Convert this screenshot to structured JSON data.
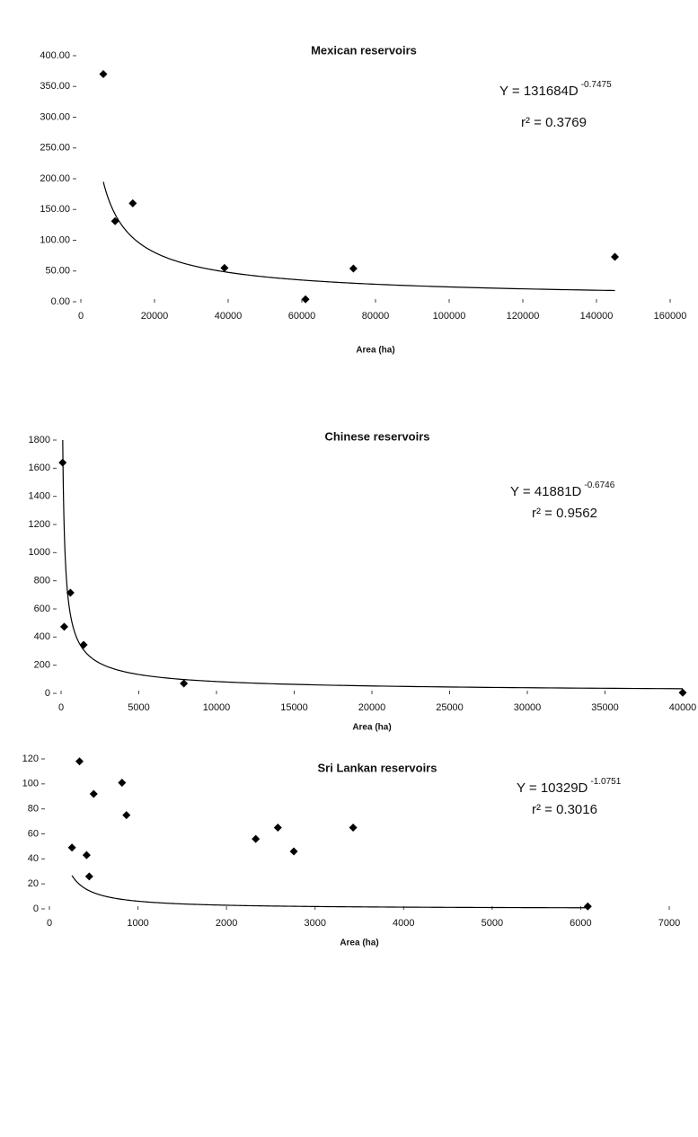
{
  "chart_data": [
    {
      "type": "scatter",
      "title": "Mexican reservoirs",
      "x_label": "Area (ha)",
      "color": "#000000",
      "x": [
        6100,
        9300,
        14100,
        39000,
        61000,
        74000,
        145000
      ],
      "values": [
        370,
        131,
        160,
        55,
        4,
        54,
        73
      ],
      "xlim": [
        0,
        160000
      ],
      "ylim": [
        0,
        400
      ],
      "xticks": [
        0,
        20000,
        40000,
        60000,
        80000,
        100000,
        120000,
        140000,
        160000
      ],
      "yticks": [
        {
          "value": 0,
          "label": "0.00"
        },
        {
          "value": 50,
          "label": "50.00"
        },
        {
          "value": 100,
          "label": "100.00"
        },
        {
          "value": 150,
          "label": "150.00"
        },
        {
          "value": 200,
          "label": "200.00"
        },
        {
          "value": 250,
          "label": "250.00"
        },
        {
          "value": 300,
          "label": "300.00"
        },
        {
          "value": 350,
          "label": "350.00"
        },
        {
          "value": 400,
          "label": "400.00"
        }
      ],
      "trendline": {
        "coefficient": 131684,
        "exponent": -0.7475,
        "label": "Y = 131684D",
        "exponent_label": "-0.7475",
        "r2_label": "r² = 0.3769"
      }
    },
    {
      "type": "scatter",
      "title": "Chinese reservoirs",
      "x_label": "Area (ha)",
      "color": "#000000",
      "x": [
        100,
        200,
        600,
        1450,
        7900,
        40000
      ],
      "values": [
        1640,
        473,
        715,
        345,
        70,
        5
      ],
      "xlim": [
        0,
        40000
      ],
      "ylim": [
        0,
        1800
      ],
      "xticks": [
        0,
        5000,
        10000,
        15000,
        20000,
        25000,
        30000,
        35000,
        40000
      ],
      "yticks": [
        0,
        200,
        400,
        600,
        800,
        1000,
        1200,
        1400,
        1600,
        1800
      ],
      "trendline": {
        "coefficient": 41881,
        "exponent": -0.6746,
        "label": "Y = 41881D",
        "exponent_label": "-0.6746",
        "r2_label": "r² = 0.9562"
      }
    },
    {
      "type": "scatter",
      "title": "Sri Lankan reservoirs",
      "x_label": "Area (ha)",
      "color": "#000000",
      "x": [
        340,
        500,
        820,
        870,
        255,
        420,
        450,
        2330,
        2580,
        2760,
        3430,
        6080
      ],
      "values": [
        118,
        92,
        101,
        75,
        49,
        43,
        26,
        56,
        65,
        46,
        65,
        2
      ],
      "xlim": [
        0,
        7000
      ],
      "ylim": [
        0,
        120
      ],
      "xticks": [
        0,
        1000,
        2000,
        3000,
        4000,
        5000,
        6000,
        7000
      ],
      "yticks": [
        0,
        20,
        40,
        60,
        80,
        100,
        120
      ],
      "trendline": {
        "coefficient": 10329,
        "exponent": -1.0751,
        "label": "Y = 10329D",
        "exponent_label": "-1.0751",
        "r2_label": "r² = 0.3016"
      }
    }
  ]
}
